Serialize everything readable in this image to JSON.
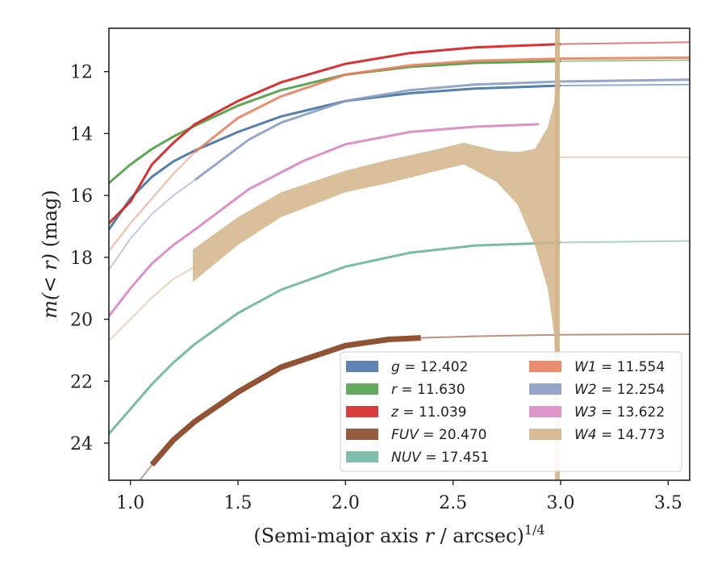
{
  "chart_data": {
    "type": "line",
    "xlabel_main": "(Semi-major axis ",
    "xlabel_var": "r",
    "xlabel_mid": " / arcsec)",
    "xlabel_sup": "1/4",
    "ylabel_main": "m(< r)",
    "ylabel_unit": " (mag)",
    "xlim": [
      0.9,
      3.6
    ],
    "ylim": [
      25.2,
      10.6
    ],
    "y_inverted": true,
    "xticks": [
      1.0,
      1.5,
      2.0,
      2.5,
      3.0,
      3.5
    ],
    "xtick_labels": [
      "1.0",
      "1.5",
      "2.0",
      "2.5",
      "3.0",
      "3.5"
    ],
    "yticks": [
      12,
      14,
      16,
      18,
      20,
      22,
      24
    ],
    "ytick_labels": [
      "12",
      "14",
      "16",
      "18",
      "20",
      "22",
      "24"
    ],
    "grid": false,
    "legend_placement": "lower-right",
    "series": [
      {
        "name": "g",
        "value": "12.402",
        "color": "#4c78a8",
        "x": [
          0.9,
          1.0,
          1.1,
          1.2,
          1.3,
          1.5,
          1.7,
          2.0,
          2.3,
          2.6,
          3.0,
          3.6
        ],
        "y": [
          17.1,
          16.1,
          15.4,
          14.9,
          14.55,
          13.95,
          13.45,
          12.95,
          12.7,
          12.55,
          12.45,
          12.42
        ],
        "split": 3.0
      },
      {
        "name": "r",
        "value": "11.630",
        "color": "#54a24b",
        "x": [
          0.9,
          1.0,
          1.1,
          1.2,
          1.3,
          1.5,
          1.7,
          2.0,
          2.3,
          2.6,
          3.0,
          3.6
        ],
        "y": [
          15.6,
          15.0,
          14.5,
          14.1,
          13.75,
          13.1,
          12.6,
          12.1,
          11.85,
          11.72,
          11.66,
          11.63
        ],
        "split": 3.0
      },
      {
        "name": "z",
        "value": "11.039",
        "color": "#d62728",
        "x": [
          0.9,
          1.0,
          1.1,
          1.2,
          1.3,
          1.5,
          1.7,
          2.0,
          2.3,
          2.6,
          3.0,
          3.6
        ],
        "y": [
          16.9,
          16.2,
          15.0,
          14.3,
          13.7,
          12.95,
          12.35,
          11.75,
          11.4,
          11.22,
          11.11,
          11.05
        ],
        "split": 3.0
      },
      {
        "name": "FUV",
        "value": "20.470",
        "color": "#8c4a2a",
        "x": [
          1.1,
          1.2,
          1.3,
          1.5,
          1.7,
          2.0,
          2.2,
          2.35,
          2.6,
          3.0,
          3.6
        ],
        "y": [
          24.7,
          23.9,
          23.3,
          22.35,
          21.55,
          20.85,
          20.65,
          20.6,
          20.55,
          20.5,
          20.48
        ],
        "split": 2.35,
        "pre_x": [
          0.9,
          1.0,
          1.1
        ],
        "pre_y": [
          26.5,
          25.6,
          24.7
        ]
      },
      {
        "name": "NUV",
        "value": "17.451",
        "color": "#72b7a2",
        "x": [
          0.9,
          1.1,
          1.2,
          1.3,
          1.5,
          1.7,
          2.0,
          2.3,
          2.6,
          3.0,
          3.6
        ],
        "y": [
          23.7,
          22.1,
          21.4,
          20.8,
          19.8,
          19.05,
          18.3,
          17.85,
          17.62,
          17.52,
          17.47
        ],
        "split": 3.0
      },
      {
        "name": "W1",
        "value": "11.554",
        "color": "#e8805e",
        "x": [
          0.9,
          1.0,
          1.1,
          1.2,
          1.3,
          1.5,
          1.7,
          2.0,
          2.3,
          2.6,
          3.0,
          3.6
        ],
        "y": [
          17.8,
          16.9,
          16.1,
          15.3,
          14.6,
          13.5,
          12.8,
          12.1,
          11.8,
          11.65,
          11.58,
          11.55
        ],
        "split": 1.3
      },
      {
        "name": "W2",
        "value": "12.254",
        "color": "#8a9cc4",
        "x": [
          0.9,
          1.0,
          1.1,
          1.2,
          1.3,
          1.55,
          1.7,
          2.0,
          2.3,
          2.6,
          3.0,
          3.6
        ],
        "y": [
          18.4,
          17.4,
          16.6,
          16.0,
          15.5,
          14.2,
          13.65,
          12.95,
          12.6,
          12.42,
          12.32,
          12.26
        ],
        "split": 1.3
      },
      {
        "name": "W3",
        "value": "13.622",
        "color": "#d98cc4",
        "x": [
          0.9,
          1.0,
          1.1,
          1.2,
          1.3,
          1.55,
          1.8,
          2.0,
          2.3,
          2.6,
          2.9,
          3.6
        ],
        "y": [
          19.9,
          19.0,
          18.2,
          17.6,
          17.1,
          15.8,
          14.9,
          14.35,
          13.95,
          13.78,
          13.7,
          13.63
        ],
        "split": 2.92
      },
      {
        "name": "W4",
        "value": "14.773",
        "color": "#d4b48a",
        "x": [
          0.9,
          1.0,
          1.1,
          1.2,
          1.3
        ],
        "y": [
          20.7,
          20.0,
          19.3,
          18.7,
          18.3
        ],
        "band": true,
        "band_x": [
          1.29,
          1.5,
          1.7,
          2.0,
          2.2,
          2.4,
          2.55,
          2.7,
          2.8,
          2.88,
          2.94,
          2.97,
          2.99
        ],
        "band_top": [
          17.75,
          16.7,
          15.9,
          15.2,
          14.85,
          14.55,
          14.3,
          14.55,
          14.6,
          14.5,
          13.8,
          13.0,
          10.6
        ],
        "band_bot": [
          18.8,
          17.6,
          16.7,
          15.9,
          15.6,
          15.25,
          15.0,
          15.55,
          16.3,
          17.6,
          19.0,
          20.5,
          25.2
        ],
        "flat_x": [
          2.99,
          3.6
        ],
        "flat_y": [
          14.77,
          14.77
        ]
      }
    ],
    "legend": [
      {
        "label": "g",
        "value": "12.402",
        "color": "#4c78a8"
      },
      {
        "label": "r",
        "value": "11.630",
        "color": "#54a24b"
      },
      {
        "label": "z",
        "value": "11.039",
        "color": "#d62728"
      },
      {
        "label": "FUV",
        "value": "20.470",
        "color": "#8c4a2a"
      },
      {
        "label": "NUV",
        "value": "17.451",
        "color": "#72b7a2"
      },
      {
        "label": "W1",
        "value": "11.554",
        "color": "#e8805e"
      },
      {
        "label": "W2",
        "value": "12.254",
        "color": "#8a9cc4"
      },
      {
        "label": "W3",
        "value": "13.622",
        "color": "#d98cc4"
      },
      {
        "label": "W4",
        "value": "14.773",
        "color": "#d4b48a"
      }
    ]
  }
}
